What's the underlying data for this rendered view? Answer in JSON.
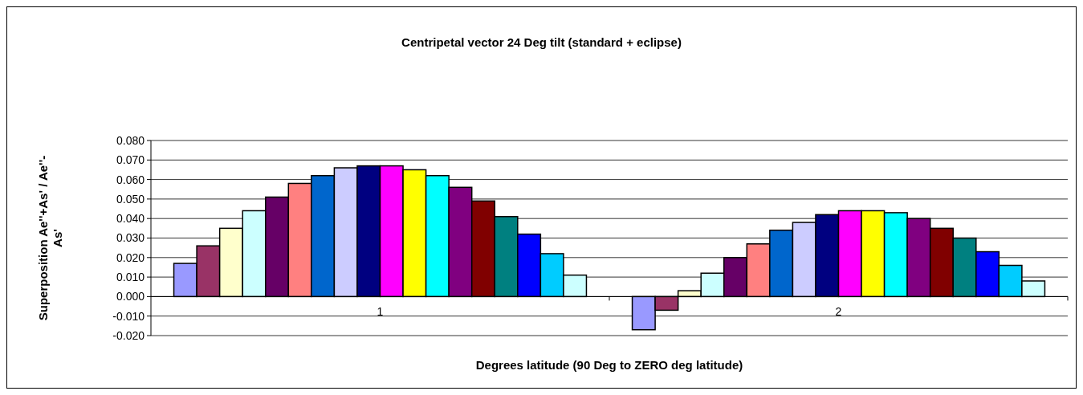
{
  "chart_data": {
    "type": "bar",
    "title": "Centripetal vector 24 Deg tilt (standard + eclipse)",
    "xlabel": "Degrees latitude (90 Deg to ZERO deg latitude)",
    "ylabel": "Superposition Ae''+As' / Ae''-As'",
    "categories": [
      "1",
      "2"
    ],
    "series": [
      {
        "color": "#9999ff",
        "values": [
          0.017,
          -0.017
        ]
      },
      {
        "color": "#993366",
        "values": [
          0.026,
          -0.007
        ]
      },
      {
        "color": "#ffffcc",
        "values": [
          0.035,
          0.003
        ]
      },
      {
        "color": "#ccffff",
        "values": [
          0.044,
          0.012
        ]
      },
      {
        "color": "#660066",
        "values": [
          0.051,
          0.02
        ]
      },
      {
        "color": "#ff8080",
        "values": [
          0.058,
          0.027
        ]
      },
      {
        "color": "#0066cc",
        "values": [
          0.062,
          0.034
        ]
      },
      {
        "color": "#ccccff",
        "values": [
          0.066,
          0.038
        ]
      },
      {
        "color": "#000080",
        "values": [
          0.067,
          0.042
        ]
      },
      {
        "color": "#ff00ff",
        "values": [
          0.067,
          0.044
        ]
      },
      {
        "color": "#ffff00",
        "values": [
          0.065,
          0.044
        ]
      },
      {
        "color": "#00ffff",
        "values": [
          0.062,
          0.043
        ]
      },
      {
        "color": "#800080",
        "values": [
          0.056,
          0.04
        ]
      },
      {
        "color": "#800000",
        "values": [
          0.049,
          0.035
        ]
      },
      {
        "color": "#008080",
        "values": [
          0.041,
          0.03
        ]
      },
      {
        "color": "#0000ff",
        "values": [
          0.032,
          0.023
        ]
      },
      {
        "color": "#00ccff",
        "values": [
          0.022,
          0.016
        ]
      },
      {
        "color": "#ccffff",
        "values": [
          0.011,
          0.008
        ]
      }
    ],
    "ylim": [
      -0.02,
      0.08
    ],
    "yticks": [
      {
        "value": -0.02,
        "label": "-0.020"
      },
      {
        "value": -0.01,
        "label": "-0.010"
      },
      {
        "value": 0,
        "label": "0.000"
      },
      {
        "value": 0.01,
        "label": "0.010"
      },
      {
        "value": 0.02,
        "label": "0.020"
      },
      {
        "value": 0.03,
        "label": "0.030"
      },
      {
        "value": 0.04,
        "label": "0.040"
      },
      {
        "value": 0.05,
        "label": "0.050"
      },
      {
        "value": 0.06,
        "label": "0.060"
      },
      {
        "value": 0.07,
        "label": "0.070"
      },
      {
        "value": 0.08,
        "label": "0.080"
      }
    ],
    "grid": "y"
  }
}
